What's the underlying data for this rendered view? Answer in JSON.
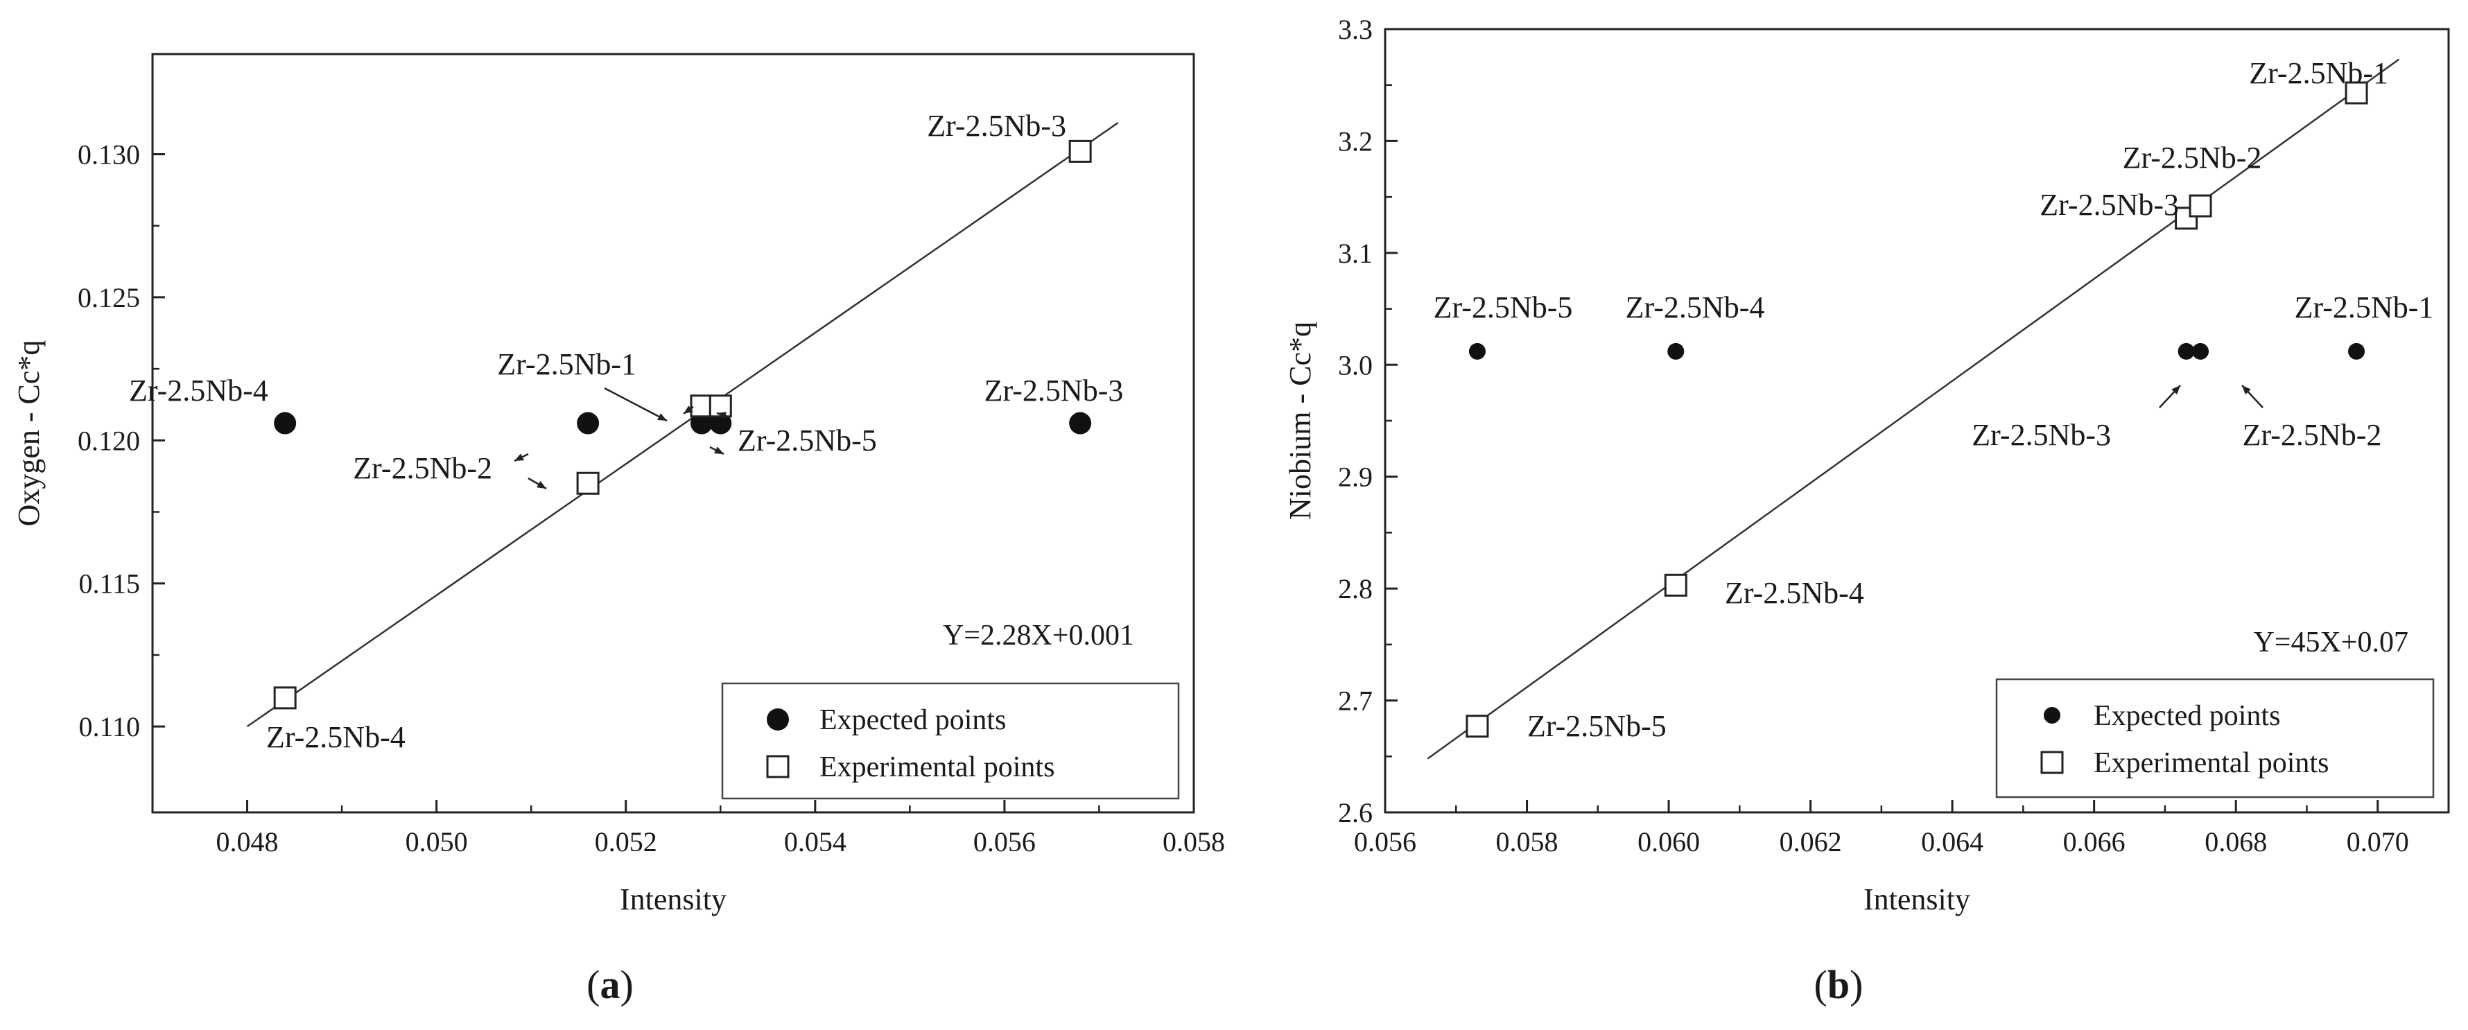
{
  "chart_data": [
    {
      "type": "scatter",
      "panel": "(a)",
      "panel_letter": "a",
      "xlabel": "Intensity",
      "ylabel": "Oxygen - Cc*q",
      "xlim": [
        0.047,
        0.058
      ],
      "ylim": [
        0.107,
        0.1335
      ],
      "xticks": [
        0.048,
        0.05,
        0.052,
        0.054,
        0.056,
        0.058
      ],
      "xtick_labels": [
        "0.048",
        "0.050",
        "0.052",
        "0.054",
        "0.056",
        "0.058"
      ],
      "yticks": [
        0.11,
        0.115,
        0.12,
        0.125,
        0.13
      ],
      "ytick_labels": [
        "0.110",
        "0.115",
        "0.120",
        "0.125",
        "0.130"
      ],
      "equation": "Y=2.28X+0.001",
      "fit_line": {
        "x": [
          0.048,
          0.0572
        ],
        "y": [
          0.11,
          0.1311
        ]
      },
      "legend": {
        "position": "bottom-right",
        "entries": [
          "Expected points",
          "Experimental points"
        ]
      },
      "series": [
        {
          "name": "Expected points",
          "marker": "filled-circle",
          "points": [
            {
              "label": "Zr-2.5Nb-4",
              "x": 0.0484,
              "y": 0.1206
            },
            {
              "label": "Zr-2.5Nb-2",
              "x": 0.0516,
              "y": 0.1206
            },
            {
              "label": "Zr-2.5Nb-1",
              "x": 0.0528,
              "y": 0.1206
            },
            {
              "label": "Zr-2.5Nb-5",
              "x": 0.053,
              "y": 0.1206
            },
            {
              "label": "Zr-2.5Nb-3",
              "x": 0.0568,
              "y": 0.1206
            }
          ]
        },
        {
          "name": "Experimental points",
          "marker": "open-square",
          "points": [
            {
              "label": "Zr-2.5Nb-4",
              "x": 0.0484,
              "y": 0.111
            },
            {
              "label": "Zr-2.5Nb-2",
              "x": 0.0516,
              "y": 0.1185
            },
            {
              "label": "Zr-2.5Nb-1",
              "x": 0.0528,
              "y": 0.1212
            },
            {
              "label": "Zr-2.5Nb-5",
              "x": 0.053,
              "y": 0.1212
            },
            {
              "label": "Zr-2.5Nb-3",
              "x": 0.0568,
              "y": 0.1301
            }
          ]
        }
      ],
      "annotations": [
        {
          "text": "Zr-2.5Nb-3",
          "dx": 0,
          "dy": -1,
          "anchor": "end"
        },
        {
          "text": "Zr-2.5Nb-4",
          "dx": 0,
          "dy": -1,
          "anchor": "start"
        },
        {
          "text": "Zr-2.5Nb-1",
          "dx": 0,
          "dy": -1,
          "anchor": "end"
        },
        {
          "text": "Zr-2.5Nb-2",
          "dx": 0,
          "dy": -1,
          "anchor": "end"
        },
        {
          "text": "Zr-2.5Nb-5",
          "dx": 0,
          "dy": 1,
          "anchor": "start"
        },
        {
          "text": "Zr-2.5Nb-3",
          "dx": 0,
          "dy": -1,
          "anchor": "middle"
        },
        {
          "text": "Zr-2.5Nb-4",
          "dx": 1,
          "dy": 1,
          "anchor": "start"
        }
      ]
    },
    {
      "type": "scatter",
      "panel": "(b)",
      "panel_letter": "b",
      "xlabel": "Intensity",
      "ylabel": "Niobium - Cc*q",
      "xlim": [
        0.056,
        0.071
      ],
      "ylim": [
        2.6,
        3.3
      ],
      "xticks": [
        0.056,
        0.058,
        0.06,
        0.062,
        0.064,
        0.066,
        0.068,
        0.07
      ],
      "xtick_labels": [
        "0.056",
        "0.058",
        "0.060",
        "0.062",
        "0.064",
        "0.066",
        "0.068",
        "0.070"
      ],
      "yticks": [
        2.6,
        2.7,
        2.8,
        2.9,
        3.0,
        3.1,
        3.2,
        3.3
      ],
      "ytick_labels": [
        "2.6",
        "2.7",
        "2.8",
        "2.9",
        "3.0",
        "3.1",
        "3.2",
        "3.3"
      ],
      "equation": "Y=45X+0.07",
      "fit_line": {
        "x": [
          0.0566,
          0.0703
        ],
        "y": [
          2.648,
          3.273
        ]
      },
      "legend": {
        "position": "bottom-right",
        "entries": [
          "Expected points",
          "Experimental points"
        ]
      },
      "series": [
        {
          "name": "Expected points",
          "marker": "filled-circle",
          "points": [
            {
              "label": "Zr-2.5Nb-5",
              "x": 0.0573,
              "y": 3.012
            },
            {
              "label": "Zr-2.5Nb-4",
              "x": 0.0601,
              "y": 3.012
            },
            {
              "label": "Zr-2.5Nb-3",
              "x": 0.0673,
              "y": 3.012
            },
            {
              "label": "Zr-2.5Nb-2",
              "x": 0.0675,
              "y": 3.012
            },
            {
              "label": "Zr-2.5Nb-1",
              "x": 0.0697,
              "y": 3.012
            }
          ]
        },
        {
          "name": "Experimental points",
          "marker": "open-square",
          "points": [
            {
              "label": "Zr-2.5Nb-5",
              "x": 0.0573,
              "y": 2.677
            },
            {
              "label": "Zr-2.5Nb-4",
              "x": 0.0601,
              "y": 2.803
            },
            {
              "label": "Zr-2.5Nb-3",
              "x": 0.0673,
              "y": 3.131
            },
            {
              "label": "Zr-2.5Nb-2",
              "x": 0.0675,
              "y": 3.142
            },
            {
              "label": "Zr-2.5Nb-1",
              "x": 0.0697,
              "y": 3.243
            }
          ]
        }
      ],
      "annotations": [
        {
          "text": "Zr-2.5Nb-1"
        },
        {
          "text": "Zr-2.5Nb-2"
        },
        {
          "text": "Zr-2.5Nb-3"
        },
        {
          "text": "Zr-2.5Nb-5"
        },
        {
          "text": "Zr-2.5Nb-4"
        },
        {
          "text": "Zr-2.5Nb-1"
        },
        {
          "text": "Zr-2.5Nb-3"
        },
        {
          "text": "Zr-2.5Nb-2"
        },
        {
          "text": "Zr-2.5Nb-4"
        },
        {
          "text": "Zr-2.5Nb-5"
        }
      ]
    }
  ]
}
